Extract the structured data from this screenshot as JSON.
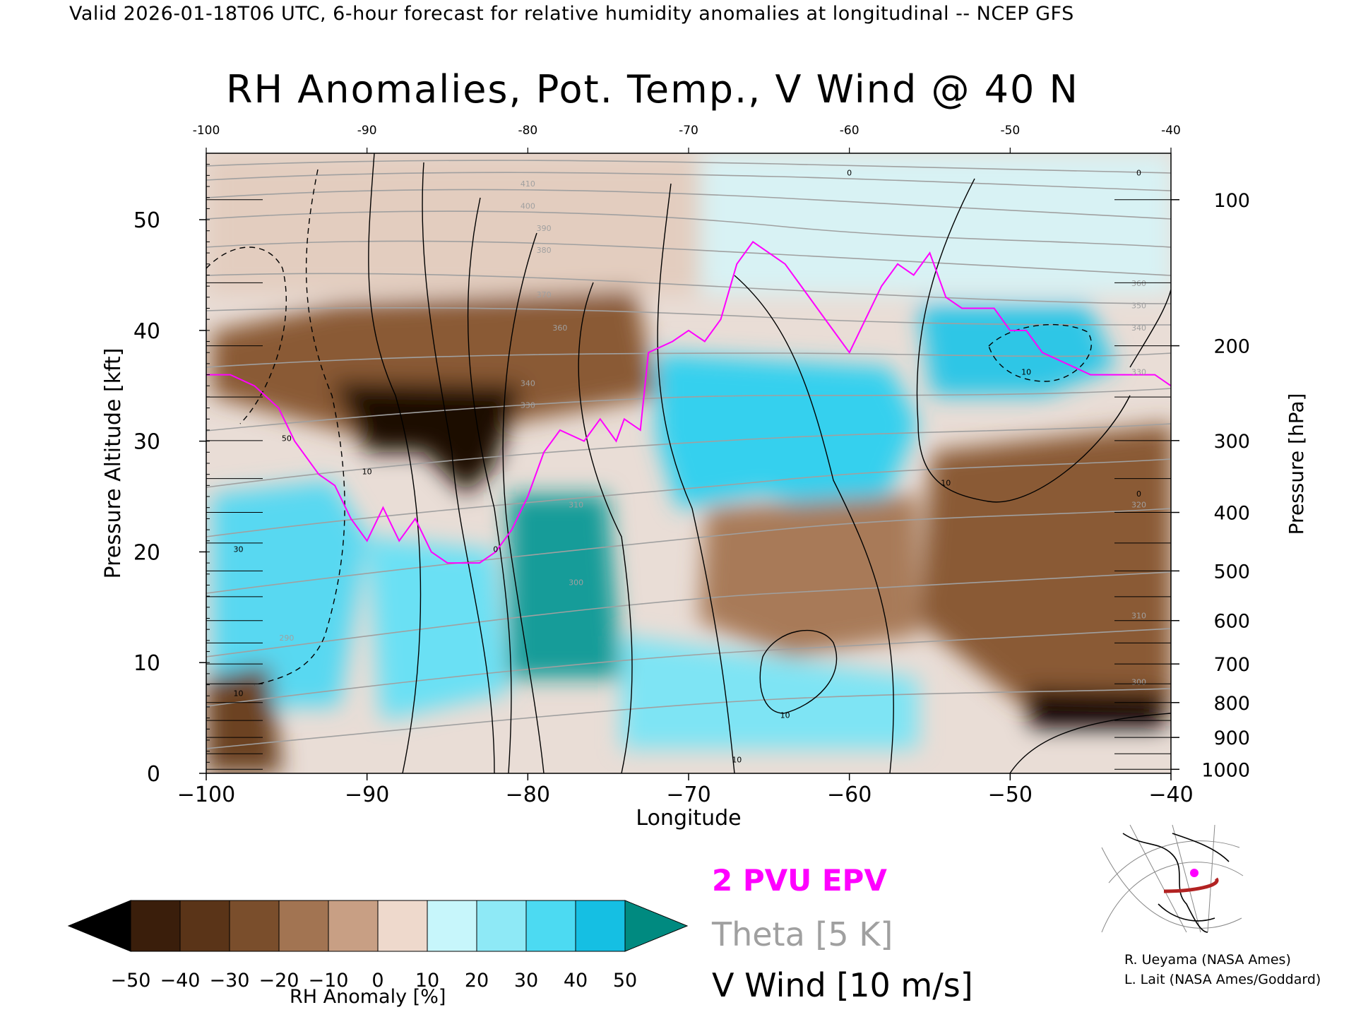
{
  "header": "Valid 2026-01-18T06 UTC, 6-hour forecast for relative humidity anomalies at longitudinal -- NCEP GFS",
  "chart_data": {
    "type": "heatmap",
    "title": "RH Anomalies, Pot. Temp., V Wind @ 40 N",
    "xlabel": "Longitude",
    "ylabel": "Pressure Altitude [kft]",
    "y2label": "Pressure [hPa]",
    "xlim": [
      -100,
      -40
    ],
    "ylim": [
      0,
      56
    ],
    "x_ticks": [
      "−100",
      "−90",
      "−80",
      "−70",
      "−60",
      "−50",
      "−40"
    ],
    "x_tick_values": [
      -100,
      -90,
      -80,
      -70,
      -60,
      -50,
      -40
    ],
    "top_ticks": [
      "-100",
      "-90",
      "-80",
      "-70",
      "-60",
      "-50",
      "-40"
    ],
    "y_ticks": [
      "0",
      "10",
      "20",
      "30",
      "40",
      "50"
    ],
    "y_tick_values": [
      0,
      10,
      20,
      30,
      40,
      50
    ],
    "pressure_labels": [
      "1000",
      "900",
      "800",
      "700",
      "600",
      "500",
      "400",
      "300",
      "200",
      "100"
    ],
    "pressure_values": [
      1000,
      900,
      800,
      700,
      600,
      500,
      400,
      300,
      200,
      100
    ],
    "epv_2pvu_line": [
      {
        "lon": -100,
        "kft": 36
      },
      {
        "lon": -98.5,
        "kft": 36
      },
      {
        "lon": -97,
        "kft": 35
      },
      {
        "lon": -95.5,
        "kft": 33
      },
      {
        "lon": -94.5,
        "kft": 30
      },
      {
        "lon": -93,
        "kft": 27
      },
      {
        "lon": -92,
        "kft": 26
      },
      {
        "lon": -91,
        "kft": 23
      },
      {
        "lon": -90,
        "kft": 21
      },
      {
        "lon": -89,
        "kft": 24
      },
      {
        "lon": -88,
        "kft": 21
      },
      {
        "lon": -87,
        "kft": 23
      },
      {
        "lon": -86,
        "kft": 20
      },
      {
        "lon": -85,
        "kft": 19
      },
      {
        "lon": -83,
        "kft": 19
      },
      {
        "lon": -82,
        "kft": 20
      },
      {
        "lon": -81,
        "kft": 22
      },
      {
        "lon": -80,
        "kft": 25
      },
      {
        "lon": -79,
        "kft": 29
      },
      {
        "lon": -78,
        "kft": 31
      },
      {
        "lon": -76.5,
        "kft": 30
      },
      {
        "lon": -75.5,
        "kft": 32
      },
      {
        "lon": -74.5,
        "kft": 30
      },
      {
        "lon": -74,
        "kft": 32
      },
      {
        "lon": -73,
        "kft": 31
      },
      {
        "lon": -72.5,
        "kft": 38
      },
      {
        "lon": -71,
        "kft": 39
      },
      {
        "lon": -70,
        "kft": 40
      },
      {
        "lon": -69,
        "kft": 39
      },
      {
        "lon": -68,
        "kft": 41
      },
      {
        "lon": -67,
        "kft": 46
      },
      {
        "lon": -66,
        "kft": 48
      },
      {
        "lon": -65,
        "kft": 47
      },
      {
        "lon": -64,
        "kft": 46
      },
      {
        "lon": -63,
        "kft": 44
      },
      {
        "lon": -62,
        "kft": 42
      },
      {
        "lon": -61,
        "kft": 40
      },
      {
        "lon": -60,
        "kft": 38
      },
      {
        "lon": -59,
        "kft": 41
      },
      {
        "lon": -58,
        "kft": 44
      },
      {
        "lon": -57,
        "kft": 46
      },
      {
        "lon": -56,
        "kft": 45
      },
      {
        "lon": -55,
        "kft": 47
      },
      {
        "lon": -54,
        "kft": 43
      },
      {
        "lon": -53,
        "kft": 42
      },
      {
        "lon": -51,
        "kft": 42
      },
      {
        "lon": -50,
        "kft": 40
      },
      {
        "lon": -49,
        "kft": 40
      },
      {
        "lon": -48,
        "kft": 38
      },
      {
        "lon": -46.5,
        "kft": 37
      },
      {
        "lon": -45,
        "kft": 36
      },
      {
        "lon": -43,
        "kft": 36
      },
      {
        "lon": -41,
        "kft": 36
      },
      {
        "lon": -40,
        "kft": 35
      }
    ],
    "theta_labels": [
      {
        "lon": -95,
        "kft": 12,
        "text": "290"
      },
      {
        "lon": -77,
        "kft": 17,
        "text": "300"
      },
      {
        "lon": -77,
        "kft": 24,
        "text": "310"
      },
      {
        "lon": -80,
        "kft": 33,
        "text": "330"
      },
      {
        "lon": -80,
        "kft": 35,
        "text": "340"
      },
      {
        "lon": -78,
        "kft": 40,
        "text": "360"
      },
      {
        "lon": -79,
        "kft": 43,
        "text": "370"
      },
      {
        "lon": -79,
        "kft": 47,
        "text": "380"
      },
      {
        "lon": -79,
        "kft": 49,
        "text": "390"
      },
      {
        "lon": -80,
        "kft": 51,
        "text": "400"
      },
      {
        "lon": -80,
        "kft": 53,
        "text": "410"
      },
      {
        "lon": -42,
        "kft": 44,
        "text": "360"
      },
      {
        "lon": -42,
        "kft": 42,
        "text": "350"
      },
      {
        "lon": -42,
        "kft": 40,
        "text": "340"
      },
      {
        "lon": -42,
        "kft": 36,
        "text": "330"
      },
      {
        "lon": -42,
        "kft": 24,
        "text": "320"
      },
      {
        "lon": -42,
        "kft": 14,
        "text": "310"
      },
      {
        "lon": -42,
        "kft": 8,
        "text": "300"
      }
    ],
    "wind_labels": [
      {
        "lon": -95,
        "kft": 30,
        "text": "50"
      },
      {
        "lon": -98,
        "kft": 20,
        "text": "30"
      },
      {
        "lon": -98,
        "kft": 7,
        "text": "10"
      },
      {
        "lon": -90,
        "kft": 27,
        "text": "10"
      },
      {
        "lon": -82,
        "kft": 20,
        "text": "0"
      },
      {
        "lon": -60,
        "kft": 54,
        "text": "0"
      },
      {
        "lon": -54,
        "kft": 26,
        "text": "10"
      },
      {
        "lon": -49,
        "kft": 36,
        "text": "10"
      },
      {
        "lon": -64,
        "kft": 5,
        "text": "10"
      },
      {
        "lon": -67,
        "kft": 1,
        "text": "10"
      },
      {
        "lon": -42,
        "kft": 25,
        "text": "0"
      },
      {
        "lon": -42,
        "kft": 54,
        "text": "0"
      }
    ],
    "colorbar": {
      "label": "RH Anomaly [%]",
      "ticks": [
        "−50",
        "−40",
        "−30",
        "−20",
        "−10",
        "0",
        "10",
        "20",
        "30",
        "40",
        "50"
      ],
      "values": [
        -50,
        -40,
        -30,
        -20,
        -10,
        0,
        10,
        20,
        30,
        40,
        50
      ],
      "colors": [
        "#000000",
        "#3a1e0b",
        "#5a3418",
        "#7a4e2c",
        "#a27452",
        "#c89f84",
        "#eed9cc",
        "#c7f6fb",
        "#8ee9f6",
        "#4cdaf2",
        "#15bfe3",
        "#0a8fb0",
        "#008a80"
      ]
    },
    "legend": {
      "epv": "2 PVU EPV",
      "theta": "Theta [5 K]",
      "wind": "V Wind [10 m/s]"
    },
    "colors": {
      "epv": "#ff00ff",
      "theta": "#a0a0a0",
      "wind": "#000000",
      "map_track": "#b22222",
      "map_marker": "#ff00ff"
    }
  },
  "credits": {
    "line1": "R. Ueyama (NASA Ames)",
    "line2": "L. Lait (NASA Ames/Goddard)"
  }
}
